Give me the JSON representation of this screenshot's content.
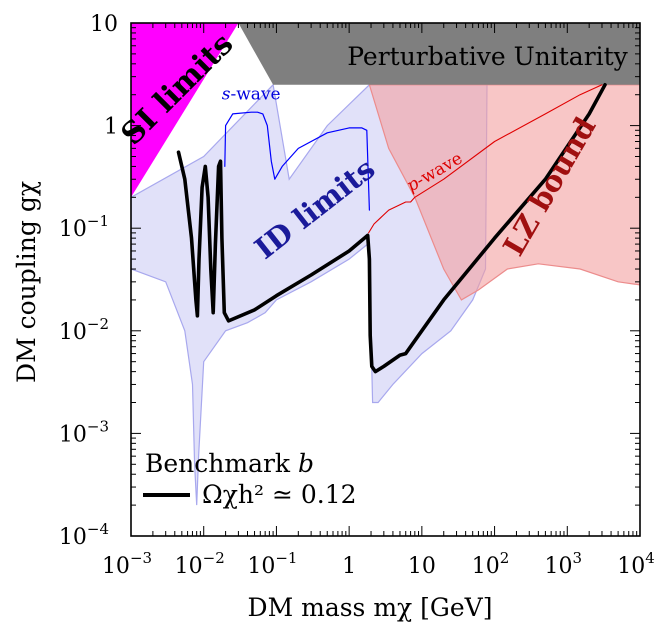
{
  "chart_data": {
    "type": "line",
    "x_scale": "log",
    "y_scale": "log",
    "xlim": [
      0.001,
      10000
    ],
    "ylim": [
      0.0001,
      10
    ],
    "xlabel": "DM mass   m_χ [GeV]",
    "ylabel": "DM coupling   g_χ",
    "x_ticks": [
      {
        "value": 0.001,
        "base": "10",
        "exp": "−3"
      },
      {
        "value": 0.01,
        "base": "10",
        "exp": "−2"
      },
      {
        "value": 0.1,
        "base": "10",
        "exp": "−1"
      },
      {
        "value": 1,
        "base": "1",
        "exp": ""
      },
      {
        "value": 10,
        "base": "10",
        "exp": ""
      },
      {
        "value": 100,
        "base": "10",
        "exp": "2"
      },
      {
        "value": 1000,
        "base": "10",
        "exp": "3"
      },
      {
        "value": 10000,
        "base": "10",
        "exp": "4"
      }
    ],
    "y_ticks": [
      {
        "value": 0.0001,
        "base": "10",
        "exp": "−4"
      },
      {
        "value": 0.001,
        "base": "10",
        "exp": "−3"
      },
      {
        "value": 0.01,
        "base": "10",
        "exp": "−2"
      },
      {
        "value": 0.1,
        "base": "10",
        "exp": "−1"
      },
      {
        "value": 1,
        "base": "1",
        "exp": ""
      },
      {
        "value": 10,
        "base": "10",
        "exp": ""
      }
    ],
    "regions": [
      {
        "name": "SI limits",
        "color": "#ff00ff",
        "points": [
          [
            0.001,
            10
          ],
          [
            0.03,
            10
          ],
          [
            0.001,
            0.2
          ]
        ]
      },
      {
        "name": "Perturbative Unitarity",
        "color": "#7f7f7f",
        "points": [
          [
            0.03,
            10
          ],
          [
            10000,
            10
          ],
          [
            10000,
            2.5
          ],
          [
            0.09,
            2.5
          ]
        ]
      },
      {
        "name": "LZ bound",
        "color": "#f4a0a0",
        "points": [
          [
            1.9,
            2.5
          ],
          [
            3.5,
            0.6
          ],
          [
            8,
            0.2
          ],
          [
            20,
            0.04
          ],
          [
            35,
            0.02
          ],
          [
            60,
            0.025
          ],
          [
            150,
            0.04
          ],
          [
            400,
            0.045
          ],
          [
            1500,
            0.04
          ],
          [
            5000,
            0.03
          ],
          [
            10000,
            0.028
          ],
          [
            10000,
            2.5
          ]
        ]
      },
      {
        "name": "ID limits",
        "color": "#c8c8f4",
        "points": [
          [
            0.001,
            0.04
          ],
          [
            0.003,
            0.03
          ],
          [
            0.0055,
            0.01
          ],
          [
            0.007,
            0.003
          ],
          [
            0.0075,
            0.0005
          ],
          [
            0.008,
            0.0002
          ],
          [
            0.0085,
            0.0006
          ],
          [
            0.01,
            0.005
          ],
          [
            0.02,
            0.01
          ],
          [
            0.04,
            0.012
          ],
          [
            0.07,
            0.015
          ],
          [
            0.1,
            0.02
          ],
          [
            0.3,
            0.03
          ],
          [
            1,
            0.05
          ],
          [
            1.8,
            0.07
          ],
          [
            1.95,
            0.02
          ],
          [
            2.1,
            0.002
          ],
          [
            2.5,
            0.002
          ],
          [
            4,
            0.003
          ],
          [
            10,
            0.006
          ],
          [
            25,
            0.01
          ],
          [
            50,
            0.02
          ],
          [
            75,
            0.04
          ],
          [
            80,
            10
          ],
          [
            1.9,
            2.5
          ],
          [
            0.5,
            1.0
          ],
          [
            0.15,
            0.3
          ],
          [
            0.09,
            2.5
          ],
          [
            0.01,
            0.5
          ],
          [
            0.001,
            0.2
          ]
        ]
      }
    ],
    "series": [
      {
        "name": "Ω_χh² ≃ 0.12",
        "color": "#000000",
        "points": [
          [
            0.0045,
            0.55
          ],
          [
            0.0055,
            0.3
          ],
          [
            0.0068,
            0.08
          ],
          [
            0.0078,
            0.02
          ],
          [
            0.0082,
            0.014
          ],
          [
            0.0086,
            0.05
          ],
          [
            0.0095,
            0.25
          ],
          [
            0.0105,
            0.4
          ],
          [
            0.0115,
            0.2
          ],
          [
            0.0125,
            0.04
          ],
          [
            0.0135,
            0.015
          ],
          [
            0.0145,
            0.07
          ],
          [
            0.016,
            0.4
          ],
          [
            0.017,
            0.45
          ],
          [
            0.0178,
            0.08
          ],
          [
            0.0192,
            0.015
          ],
          [
            0.022,
            0.0125
          ],
          [
            0.05,
            0.016
          ],
          [
            0.1,
            0.022
          ],
          [
            0.3,
            0.035
          ],
          [
            1,
            0.06
          ],
          [
            1.8,
            0.085
          ],
          [
            1.9,
            0.05
          ],
          [
            1.95,
            0.009
          ],
          [
            2.05,
            0.0045
          ],
          [
            2.3,
            0.004
          ],
          [
            3,
            0.0045
          ],
          [
            5,
            0.0058
          ],
          [
            6,
            0.006
          ],
          [
            8,
            0.008
          ],
          [
            20,
            0.02
          ],
          [
            100,
            0.08
          ],
          [
            500,
            0.3
          ],
          [
            2000,
            1.3
          ],
          [
            3300,
            2.5
          ]
        ]
      },
      {
        "name": "s-wave",
        "color": "#0000ff",
        "points": [
          [
            0.0195,
            0.4
          ],
          [
            0.02,
            1.0
          ],
          [
            0.025,
            1.3
          ],
          [
            0.045,
            1.35
          ],
          [
            0.055,
            1.35
          ],
          [
            0.065,
            1.3
          ],
          [
            0.075,
            1.0
          ],
          [
            0.085,
            0.45
          ],
          [
            0.095,
            0.3
          ],
          [
            0.12,
            0.4
          ],
          [
            0.2,
            0.6
          ],
          [
            0.5,
            0.85
          ],
          [
            1,
            0.95
          ],
          [
            1.5,
            0.95
          ],
          [
            1.75,
            0.9
          ],
          [
            1.9,
            0.15
          ]
        ]
      },
      {
        "name": "p-wave",
        "color": "#e00000",
        "points": [
          [
            1.85,
            0.09
          ],
          [
            2.2,
            0.11
          ],
          [
            3.5,
            0.15
          ],
          [
            6,
            0.18
          ],
          [
            7,
            0.18
          ],
          [
            8,
            0.2
          ],
          [
            20,
            0.3
          ],
          [
            100,
            0.7
          ],
          [
            500,
            1.3
          ],
          [
            1500,
            2.0
          ],
          [
            3000,
            2.5
          ]
        ]
      }
    ],
    "annotations": [
      {
        "text": "SI limits",
        "color": "#000000",
        "x": 0.0045,
        "y": 2.2,
        "rotation": -45,
        "size": 30
      },
      {
        "text": "Perturbative Unitarity",
        "color": "#000000",
        "x": 80,
        "y": 4.5,
        "rotation": 0,
        "size": 25
      },
      {
        "text": "ID limits",
        "color": "#1a1a9a",
        "x": 0.35,
        "y": 0.15,
        "rotation": -38,
        "size": 29
      },
      {
        "text": "LZ bound",
        "color": "#a01010",
        "x": 600,
        "y": 0.25,
        "rotation": -60,
        "size": 29
      },
      {
        "text_main": "s",
        "text_sub": "-wave",
        "color": "#0000dd",
        "x": 0.045,
        "y": 2.0,
        "rotation": 0,
        "size": 17
      },
      {
        "text_main": "p",
        "text_sub": "-wave",
        "color": "#dd0000",
        "x": 15,
        "y": 0.35,
        "rotation": -30,
        "size": 17
      }
    ],
    "legend": {
      "title": "Benchmark b",
      "entries": [
        {
          "label": "Ω_χh² ≃ 0.12",
          "color": "#000000"
        }
      ],
      "placement": "bottom-left"
    }
  }
}
